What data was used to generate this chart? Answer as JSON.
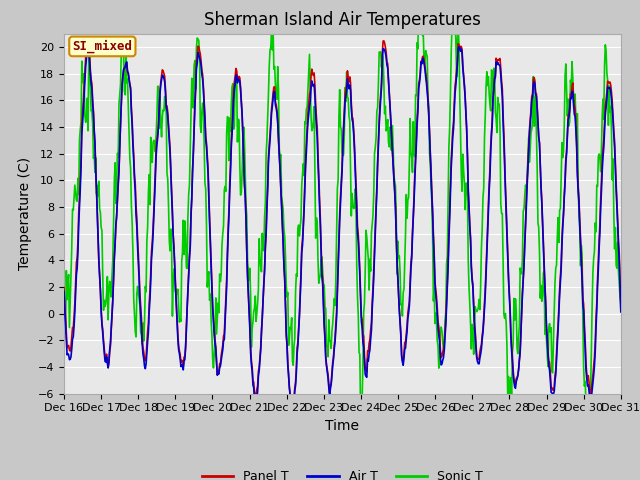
{
  "title": "Sherman Island Air Temperatures",
  "xlabel": "Time",
  "ylabel": "Temperature (C)",
  "ylim": [
    -6,
    21
  ],
  "yticks": [
    -6,
    -4,
    -2,
    0,
    2,
    4,
    6,
    8,
    10,
    12,
    14,
    16,
    18,
    20
  ],
  "xtick_labels": [
    "Dec 16",
    "Dec 17",
    "Dec 18",
    "Dec 19",
    "Dec 20",
    "Dec 21",
    "Dec 22",
    "Dec 23",
    "Dec 24",
    "Dec 25",
    "Dec 26",
    "Dec 27",
    "Dec 28",
    "Dec 29",
    "Dec 30",
    "Dec 31"
  ],
  "panel_t_color": "#cc0000",
  "air_t_color": "#0000cc",
  "sonic_t_color": "#00cc00",
  "plot_bg_color": "#e8e8e8",
  "fig_bg_color": "#c8c8c8",
  "legend_label": "SI_mixed",
  "legend_bg": "#ffffcc",
  "legend_border": "#cc8800",
  "title_fontsize": 12,
  "axis_label_fontsize": 10,
  "tick_fontsize": 8,
  "line_width": 1.2,
  "seed": 12345,
  "n_per_day": 48,
  "n_days": 15
}
